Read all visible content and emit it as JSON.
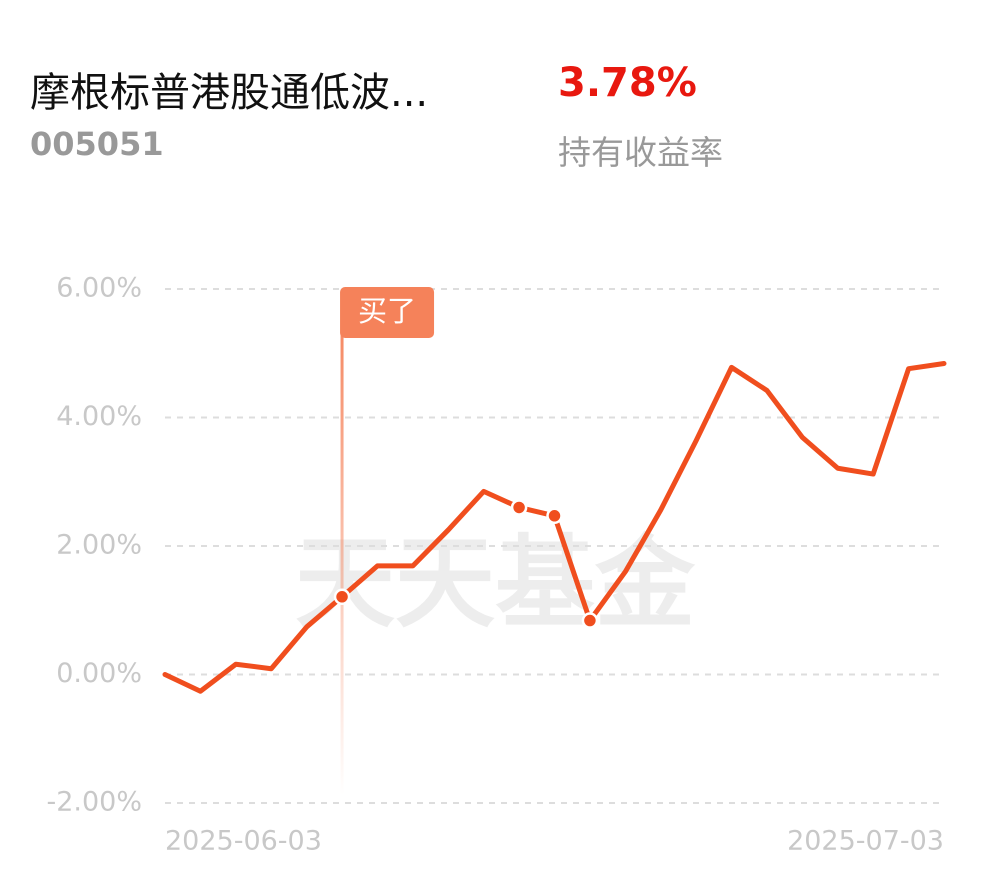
{
  "header": {
    "fund_name": "摩根标普港股通低波...",
    "fund_code": "005051",
    "return_value": "3.78%",
    "return_label": "持有收益率"
  },
  "chart_data": {
    "type": "line",
    "watermark": "天天基金",
    "categories": [
      "2025-06-03",
      null,
      null,
      null,
      null,
      null,
      null,
      null,
      null,
      null,
      null,
      null,
      null,
      null,
      null,
      null,
      null,
      null,
      null,
      null,
      null,
      null,
      "2025-07-03"
    ],
    "series": [
      {
        "color": "#f04e1e",
        "values": [
          0.0,
          -0.26,
          0.16,
          0.09,
          0.74,
          1.21,
          1.69,
          1.69,
          2.25,
          2.85,
          2.6,
          2.47,
          0.84,
          1.6,
          2.56,
          3.64,
          4.78,
          4.42,
          3.69,
          3.21,
          3.12,
          4.76,
          4.84
        ]
      }
    ],
    "ylim": [
      -2,
      6
    ],
    "yticks": [
      {
        "value": -2,
        "label": "-2.00%"
      },
      {
        "value": 0,
        "label": "0.00%"
      },
      {
        "value": 2,
        "label": "2.00%"
      },
      {
        "value": 4,
        "label": "4.00%"
      },
      {
        "value": 6,
        "label": "6.00%"
      }
    ],
    "grid": true,
    "buy_marker": {
      "index": 5,
      "label": "买了",
      "color": "#f5825a"
    },
    "highlight_points": [
      5,
      10,
      11,
      12
    ]
  }
}
